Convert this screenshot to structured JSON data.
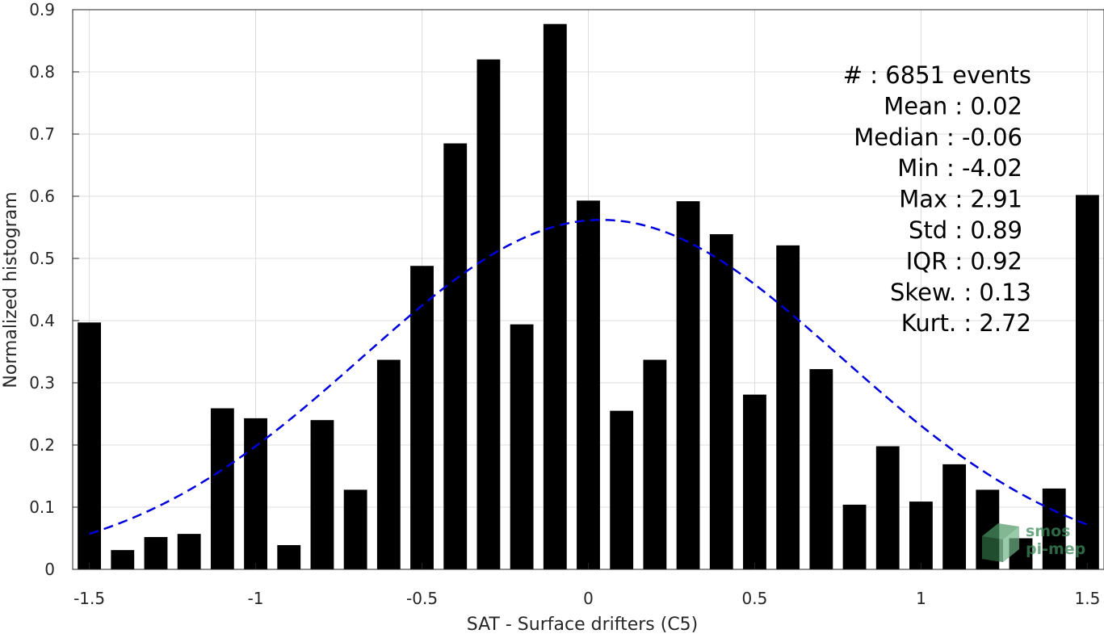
{
  "chart_data": {
    "type": "bar",
    "xlabel": "SAT - Surface drifters (C5)",
    "ylabel": "Normalized histogram",
    "xlim": [
      -1.55,
      1.55
    ],
    "ylim": [
      0,
      0.9
    ],
    "xticks": [
      -1.5,
      -1,
      -0.5,
      0,
      0.5,
      1,
      1.5
    ],
    "xtick_labels": [
      "-1.5",
      "-1",
      "-0.5",
      "0",
      "0.5",
      "1",
      "1.5"
    ],
    "yticks": [
      0,
      0.1,
      0.2,
      0.3,
      0.4,
      0.5,
      0.6,
      0.7,
      0.8,
      0.9
    ],
    "ytick_labels": [
      "0",
      "0.1",
      "0.2",
      "0.3",
      "0.4",
      "0.5",
      "0.6",
      "0.7",
      "0.8",
      "0.9"
    ],
    "grid": true,
    "bar_color": "#000000",
    "bar_width": 0.07,
    "x": [
      -1.5,
      -1.4,
      -1.3,
      -1.2,
      -1.1,
      -1.0,
      -0.9,
      -0.8,
      -0.7,
      -0.6,
      -0.5,
      -0.4,
      -0.3,
      -0.2,
      -0.1,
      0.0,
      0.1,
      0.2,
      0.3,
      0.4,
      0.5,
      0.6,
      0.7,
      0.8,
      0.9,
      1.0,
      1.1,
      1.2,
      1.3,
      1.4,
      1.5
    ],
    "values": [
      0.397,
      0.031,
      0.052,
      0.057,
      0.259,
      0.243,
      0.039,
      0.24,
      0.128,
      0.337,
      0.488,
      0.685,
      0.82,
      0.394,
      0.877,
      0.593,
      0.255,
      0.337,
      0.592,
      0.539,
      0.281,
      0.521,
      0.322,
      0.104,
      0.198,
      0.109,
      0.169,
      0.128,
      0.05,
      0.13,
      0.602
    ],
    "fit": {
      "type": "gaussian",
      "color": "#0000dd",
      "style": "dashed",
      "x_range": [
        -1.5,
        1.5
      ],
      "peak": 0.562,
      "center": 0.04,
      "sigma": 0.72
    },
    "stats_lines": [
      "#  : 6851 events",
      "Mean : 0.02",
      "Median : -0.06",
      "Min : -4.02",
      "Max : 2.91",
      "Std : 0.89",
      "IQR : 0.92",
      "Skew. : 0.13",
      "Kurt. : 2.72"
    ],
    "logo": {
      "line1": "smos",
      "line2": "pi-mep"
    }
  }
}
